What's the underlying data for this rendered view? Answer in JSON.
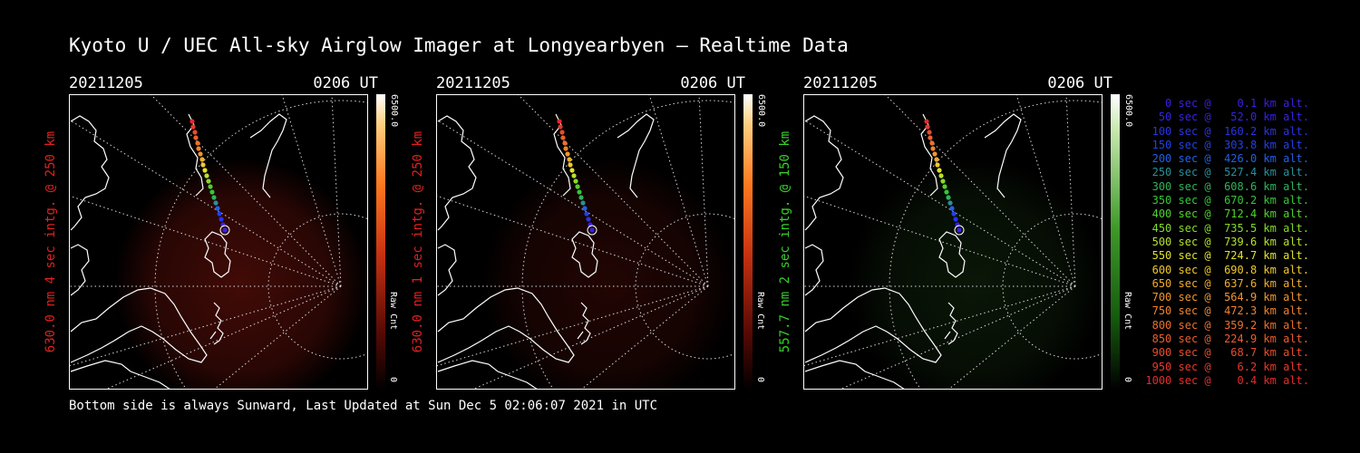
{
  "title": "Kyoto U / UEC All-sky Airglow Imager at Longyearbyen — Realtime Data",
  "footer": "Bottom side is always Sunward, Last Updated at Sun Dec  5 02:06:07 2021 in UTC",
  "panels": [
    {
      "date": "20211205",
      "time": "0206 UT",
      "side_label": "630.0 nm 4 sec intg. @ 250 km",
      "side_color": "#e0211e",
      "cb_max": "6500.0",
      "cb_unit": "Raw Cnt",
      "cb_min": "0",
      "colormap": "red",
      "glow": 0.55
    },
    {
      "date": "20211205",
      "time": "0206 UT",
      "side_label": "630.0 nm 1 sec intg. @ 250 km",
      "side_color": "#e0211e",
      "cb_max": "6500.0",
      "cb_unit": "Raw Cnt",
      "cb_min": "0",
      "colormap": "red",
      "glow": 0.28
    },
    {
      "date": "20211205",
      "time": "0206 UT",
      "side_label": "557.7 nm 2 sec intg. @ 150 km",
      "side_color": "#35d12a",
      "cb_max": "6500.0",
      "cb_unit": "Raw Cnt",
      "cb_min": "0",
      "colormap": "green",
      "glow": 0.25
    }
  ],
  "legend": [
    {
      "text": "   0 sec @    0.1 km alt.",
      "color": "#3c1fe0"
    },
    {
      "text": "  50 sec @   52.0 km alt.",
      "color": "#3422e6"
    },
    {
      "text": " 100 sec @  160.2 km alt.",
      "color": "#2a33e8"
    },
    {
      "text": " 150 sec @  303.8 km alt.",
      "color": "#2240e8"
    },
    {
      "text": " 200 sec @  426.0 km alt.",
      "color": "#2260e6"
    },
    {
      "text": " 250 sec @  527.4 km alt.",
      "color": "#2a8f9a"
    },
    {
      "text": " 300 sec @  608.6 km alt.",
      "color": "#2fb45a"
    },
    {
      "text": " 350 sec @  670.2 km alt.",
      "color": "#34c738"
    },
    {
      "text": " 400 sec @  712.4 km alt.",
      "color": "#4fd22e"
    },
    {
      "text": " 450 sec @  735.5 km alt.",
      "color": "#83dc2c"
    },
    {
      "text": " 500 sec @  739.6 km alt.",
      "color": "#b8e22c"
    },
    {
      "text": " 550 sec @  724.7 km alt.",
      "color": "#e0e22c"
    },
    {
      "text": " 600 sec @  690.8 km alt.",
      "color": "#f0c82c"
    },
    {
      "text": " 650 sec @  637.6 km alt.",
      "color": "#f2ac2c"
    },
    {
      "text": " 700 sec @  564.9 km alt.",
      "color": "#f2962c"
    },
    {
      "text": " 750 sec @  472.3 km alt.",
      "color": "#f0822c"
    },
    {
      "text": " 800 sec @  359.2 km alt.",
      "color": "#ee702c"
    },
    {
      "text": " 850 sec @  224.9 km alt.",
      "color": "#ec5e2c"
    },
    {
      "text": " 900 sec @   68.7 km alt.",
      "color": "#ea4c2a"
    },
    {
      "text": " 950 sec @    6.2 km alt.",
      "color": "#e8392a"
    },
    {
      "text": "1000 sec @    0.4 km alt.",
      "color": "#e62a2a"
    }
  ]
}
